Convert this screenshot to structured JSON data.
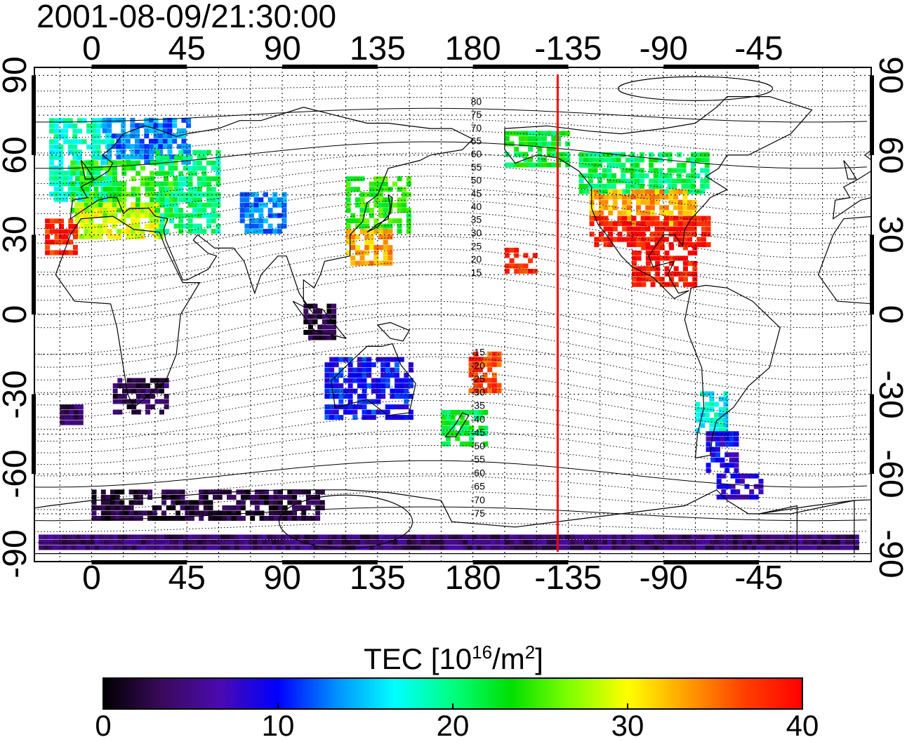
{
  "title": "2001-08-09/21:30:00",
  "axes": {
    "x_ticks_top": [
      "0",
      "45",
      "90",
      "135",
      "180",
      "-135",
      "-90",
      "-45"
    ],
    "x_ticks_bottom": [
      "0",
      "45",
      "90",
      "135",
      "180",
      "-135",
      "-90",
      "-45"
    ],
    "y_ticks_left": [
      "90",
      "60",
      "30",
      "0",
      "-30",
      "-60",
      "-90"
    ],
    "y_ticks_right": [
      "90",
      "60",
      "30",
      "0",
      "-30",
      "-60",
      "-90"
    ],
    "lon_range": [
      -27,
      368
    ],
    "lat_range": [
      -93,
      93
    ],
    "grid_step_deg": 15
  },
  "contour_labels": [
    "80",
    "75",
    "70",
    "65",
    "60",
    "55",
    "50",
    "45",
    "40",
    "35",
    "30",
    "25",
    "20",
    "15",
    "-15",
    "-20",
    "-25",
    "-30",
    "-35",
    "-40",
    "-45",
    "-50",
    "-55",
    "-60",
    "-65",
    "-70",
    "-75"
  ],
  "terminator_longitude": 220,
  "colorbar": {
    "label_main": "TEC  [10",
    "label_exp1": "16",
    "label_mid": "/m",
    "label_exp2": "2",
    "label_end": "]",
    "min": 0,
    "max": 40,
    "ticks": [
      "0",
      "10",
      "20",
      "30",
      "40"
    ],
    "colors": [
      "#000000",
      "#3a0a5a",
      "#4b0ab0",
      "#0000ff",
      "#0090ff",
      "#00ffff",
      "#00ff80",
      "#00e000",
      "#80ff00",
      "#ffff00",
      "#ffa000",
      "#ff4000",
      "#ff0000"
    ]
  },
  "tec_regions": [
    {
      "lon": [
        -20,
        10
      ],
      "lat": [
        42,
        72
      ],
      "tec": 18
    },
    {
      "lon": [
        5,
        45
      ],
      "lat": [
        56,
        72
      ],
      "tec": 13
    },
    {
      "lon": [
        -10,
        40
      ],
      "lat": [
        36,
        56
      ],
      "tec": 24
    },
    {
      "lon": [
        -8,
        35
      ],
      "lat": [
        28,
        40
      ],
      "tec": 29
    },
    {
      "lon": [
        30,
        60
      ],
      "lat": [
        30,
        60
      ],
      "tec": 20
    },
    {
      "lon": [
        -22,
        -8
      ],
      "lat": [
        22,
        34
      ],
      "tec": 38
    },
    {
      "lon": [
        70,
        90
      ],
      "lat": [
        30,
        45
      ],
      "tec": 13
    },
    {
      "lon": [
        120,
        150
      ],
      "lat": [
        30,
        50
      ],
      "tec": 24
    },
    {
      "lon": [
        120,
        140
      ],
      "lat": [
        18,
        30
      ],
      "tec": 33
    },
    {
      "lon": [
        100,
        115
      ],
      "lat": [
        -10,
        2
      ],
      "tec": 2
    },
    {
      "lon": [
        10,
        35
      ],
      "lat": [
        -38,
        -25
      ],
      "tec": 3
    },
    {
      "lon": [
        -15,
        -5
      ],
      "lat": [
        -42,
        -36
      ],
      "tec": 4
    },
    {
      "lon": [
        110,
        150
      ],
      "lat": [
        -40,
        -18
      ],
      "tec": 10
    },
    {
      "lon": [
        165,
        185
      ],
      "lat": [
        -50,
        -38
      ],
      "tec": 22
    },
    {
      "lon": [
        178,
        192
      ],
      "lat": [
        -30,
        -15
      ],
      "tec": 37
    },
    {
      "lon": [
        195,
        210
      ],
      "lat": [
        15,
        23
      ],
      "tec": 38
    },
    {
      "lon": [
        195,
        225
      ],
      "lat": [
        55,
        68
      ],
      "tec": 22
    },
    {
      "lon": [
        230,
        290
      ],
      "lat": [
        45,
        60
      ],
      "tec": 21
    },
    {
      "lon": [
        235,
        285
      ],
      "lat": [
        33,
        45
      ],
      "tec": 33
    },
    {
      "lon": [
        235,
        290
      ],
      "lat": [
        25,
        35
      ],
      "tec": 39
    },
    {
      "lon": [
        255,
        285
      ],
      "lat": [
        10,
        25
      ],
      "tec": 39
    },
    {
      "lon": [
        285,
        300
      ],
      "lat": [
        -45,
        -30
      ],
      "tec": 17
    },
    {
      "lon": [
        290,
        305
      ],
      "lat": [
        -60,
        -45
      ],
      "tec": 9
    },
    {
      "lon": [
        295,
        315
      ],
      "lat": [
        -70,
        -62
      ],
      "tec": 8
    },
    {
      "lon": [
        0,
        110
      ],
      "lat": [
        -78,
        -68
      ],
      "tec": 2
    },
    {
      "lon": [
        -25,
        360
      ],
      "lat": [
        -89,
        -85
      ],
      "tec": 4
    }
  ]
}
